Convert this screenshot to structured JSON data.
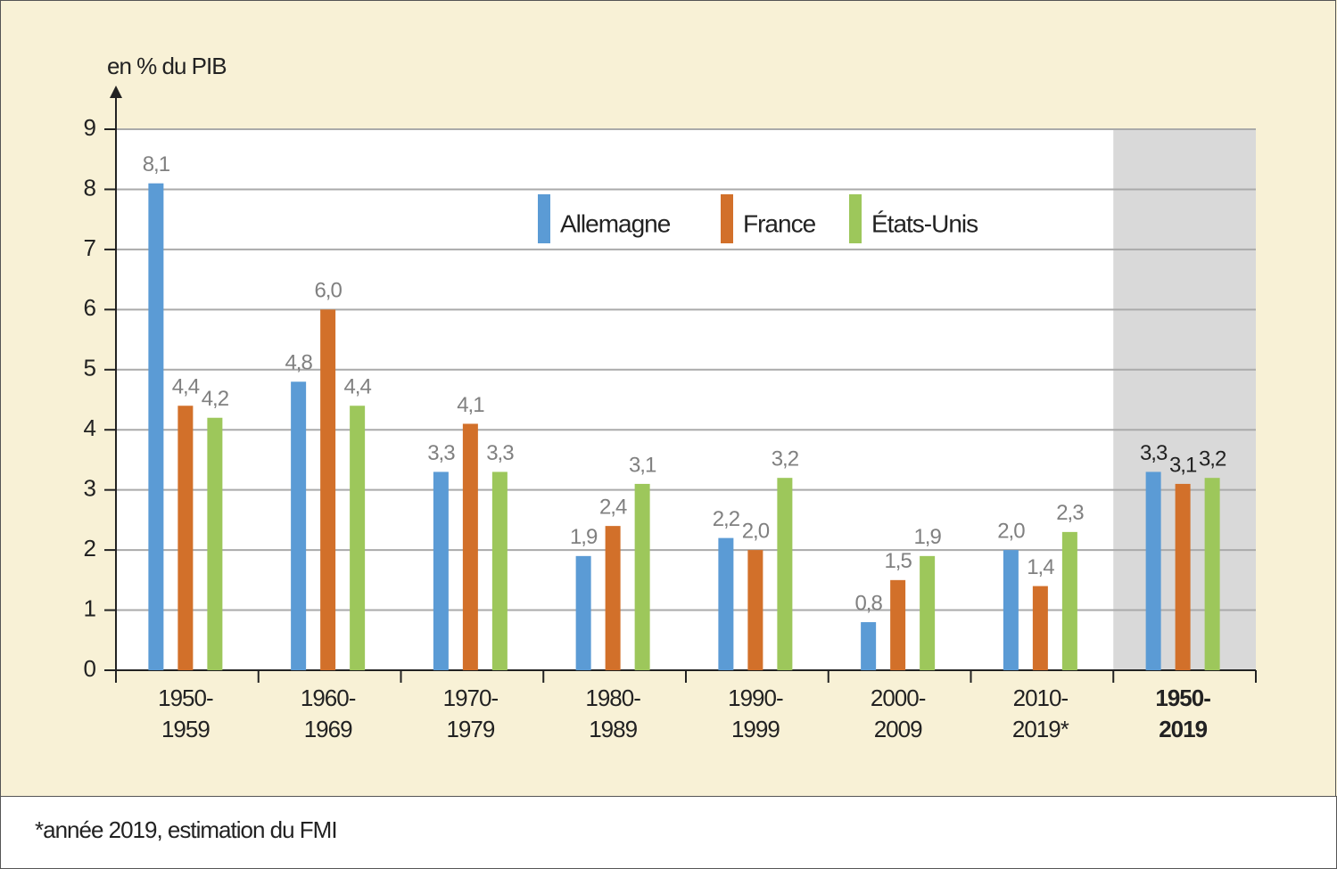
{
  "chart_data": {
    "type": "bar",
    "y_label": "en % du PIB",
    "categories": [
      "1950-\n1959",
      "1960-\n1969",
      "1970-\n1979",
      "1980-\n1989",
      "1990-\n1999",
      "2000-\n2009",
      "2010-\n2019*",
      "1950-\n2019"
    ],
    "series": [
      {
        "name": "Allemagne",
        "color": "#5b9bd5",
        "values": [
          8.1,
          4.8,
          3.3,
          1.9,
          2.2,
          0.8,
          2.0,
          3.3
        ],
        "value_labels": [
          "8,1",
          "4,8",
          "3,3",
          "1,9",
          "2,2",
          "0,8",
          "2,0",
          "3,3"
        ]
      },
      {
        "name": "France",
        "color": "#d2702a",
        "values": [
          4.4,
          6.0,
          4.1,
          2.4,
          2.0,
          1.5,
          1.4,
          3.1
        ],
        "value_labels": [
          "4,4",
          "6,0",
          "4,1",
          "2,4",
          "2,0",
          "1,5",
          "1,4",
          "3,1"
        ]
      },
      {
        "name": "États-Unis",
        "color": "#9dc75b",
        "values": [
          4.2,
          4.4,
          3.3,
          3.1,
          3.2,
          1.9,
          2.3,
          3.2
        ],
        "value_labels": [
          "4,2",
          "4,4",
          "3,3",
          "3,1",
          "3,2",
          "1,9",
          "2,3",
          "3,2"
        ]
      }
    ],
    "ylim": [
      0,
      9
    ],
    "yticks": [
      0,
      1,
      2,
      3,
      4,
      5,
      6,
      7,
      8,
      9
    ],
    "grid": true,
    "legend": "top",
    "highlight_last": true,
    "footnote": "*année 2019,  estimation du FMI"
  }
}
